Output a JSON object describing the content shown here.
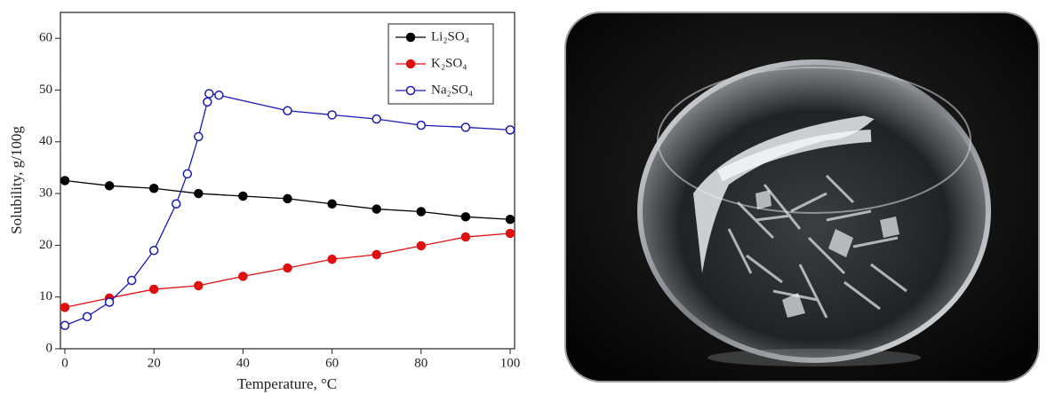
{
  "chart_data": {
    "type": "line",
    "xlabel": "Temperature, °C",
    "ylabel": "Solubility, g/100g",
    "xlim": [
      -1,
      101
    ],
    "xticks": [
      0,
      20,
      40,
      60,
      80,
      100
    ],
    "ylim": [
      0,
      65
    ],
    "yticks": [
      0,
      10,
      20,
      30,
      40,
      50,
      60
    ],
    "legend": "upper right",
    "series": [
      {
        "name": "Li₂SO₄",
        "color": "#000000",
        "marker": "filled",
        "x": [
          0,
          10,
          20,
          30,
          40,
          50,
          60,
          70,
          80,
          90,
          100
        ],
        "values": [
          32.5,
          31.5,
          31,
          30,
          29.5,
          29,
          28,
          27,
          26.5,
          25.5,
          25
        ]
      },
      {
        "name": "K₂SO₄",
        "color": "#e01010",
        "marker": "filled",
        "x": [
          0,
          10,
          20,
          30,
          40,
          50,
          60,
          70,
          80,
          90,
          100
        ],
        "values": [
          8,
          9.8,
          11.5,
          12.2,
          14,
          15.6,
          17.3,
          18.2,
          19.9,
          21.6,
          22.3
        ]
      },
      {
        "name": "Na₂SO₄",
        "color": "#1a1ab4",
        "marker": "open",
        "x": [
          0,
          5,
          10,
          15,
          20,
          25,
          27.5,
          30,
          32,
          32.4,
          34.6,
          50,
          60,
          70,
          80,
          90,
          100
        ],
        "values": [
          4.5,
          6.2,
          9,
          13.2,
          19,
          28,
          33.8,
          41,
          47.7,
          49.3,
          49,
          46,
          45.2,
          44.4,
          43.2,
          42.8,
          42.3
        ]
      }
    ]
  }
}
